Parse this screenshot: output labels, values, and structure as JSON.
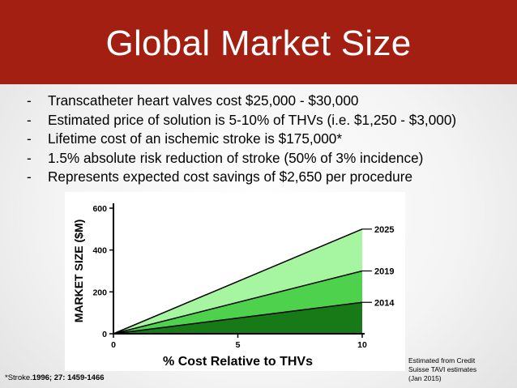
{
  "slide": {
    "title": "Global Market Size",
    "bullets": [
      "Transcatheter heart valves  cost $25,000 - $30,000",
      "Estimated price of solution is 5-10% of THVs (i.e. $1,250 - $3,000)",
      "Lifetime cost of an ischemic stroke is $175,000*",
      "1.5% absolute risk reduction of stroke (50% of 3% incidence)",
      "Represents expected cost savings of $2,650 per procedure"
    ],
    "bullet_marker": "-",
    "source_note": [
      "Estimated from Credit",
      "Suisse TAVI estimates",
      "(Jan 2015)"
    ],
    "footnote_prefix": "*Stroke.",
    "footnote_bold": "1996; 27: 1459-1466"
  },
  "colors": {
    "title_bar": "#a31f12",
    "series_2025": "#a6f5a0",
    "series_2019": "#4ed24e",
    "series_2014": "#177a17"
  },
  "chart_data": {
    "type": "area",
    "xlabel": "% Cost Relative to THVs",
    "ylabel": "MARKET SIZE ($M)",
    "xlim": [
      0,
      10
    ],
    "ylim": [
      0,
      600
    ],
    "x_ticks": [
      0,
      5,
      10
    ],
    "y_ticks": [
      0,
      200,
      400,
      600
    ],
    "x": [
      0,
      10
    ],
    "series": [
      {
        "name": "2025",
        "values": [
          0,
          500
        ]
      },
      {
        "name": "2019",
        "values": [
          0,
          300
        ]
      },
      {
        "name": "2014",
        "values": [
          0,
          150
        ]
      }
    ],
    "grid": false,
    "legend": "inline labels at right end of each line"
  }
}
